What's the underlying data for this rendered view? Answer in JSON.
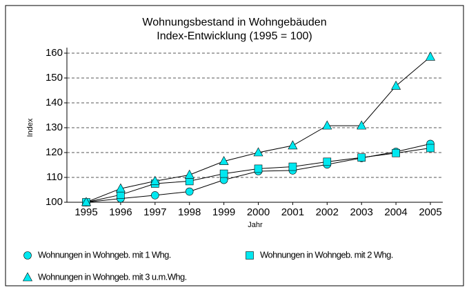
{
  "chart_data": {
    "type": "line",
    "title": [
      "Wohnungsbestand in Wohngebäuden",
      "Index-Entwicklung (1995 = 100)"
    ],
    "xlabel": "Jahr",
    "ylabel": "Index",
    "categories": [
      "1995",
      "1996",
      "1997",
      "1998",
      "1999",
      "2000",
      "2001",
      "2002",
      "2003",
      "2004",
      "2005"
    ],
    "series": [
      {
        "name": "Wohnungen in Wohngeb. mit 1 Whg.",
        "color": "#00e8f0",
        "line_color": "#000000",
        "marker": "circle",
        "values": [
          100,
          101.5,
          102.8,
          104.3,
          109,
          112.5,
          112.8,
          115.2,
          117.8,
          120.3,
          123.5
        ]
      },
      {
        "name": "Wohnungen in Wohngeb. mit 2 Whg.",
        "color": "#00e8f0",
        "line_color": "#000000",
        "marker": "square",
        "values": [
          100,
          103,
          107.5,
          108.5,
          111.5,
          113.5,
          114.3,
          116.3,
          118,
          119.8,
          121.8
        ]
      },
      {
        "name": "Wohnungen in Wohngeb. mit 3 u.m.Whg.",
        "color": "#00e8f0",
        "line_color": "#000000",
        "marker": "triangle",
        "values": [
          100,
          105.5,
          108.5,
          111,
          116.5,
          120,
          122.8,
          130.8,
          130.8,
          146.8,
          158.5
        ]
      }
    ],
    "ylim": [
      100,
      160
    ],
    "yticks": [
      100,
      110,
      120,
      130,
      140,
      150,
      160
    ],
    "grid": true
  }
}
